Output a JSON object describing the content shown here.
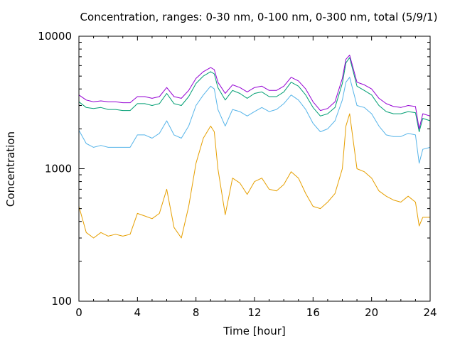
{
  "chart_data": {
    "type": "line",
    "title": "Concentration, ranges: 0-30 nm, 0-100 nm, 0-300 nm, total (5/9/1)",
    "xlabel": "Time [hour]",
    "ylabel": "Concentration",
    "xlim": [
      0,
      24
    ],
    "ylim": [
      100,
      10000
    ],
    "yscale": "log",
    "grid": false,
    "legend": "none",
    "x_ticks": [
      0,
      4,
      8,
      12,
      16,
      20,
      24
    ],
    "x_tick_labels": [
      "0",
      "4",
      "8",
      "12",
      "16",
      "20",
      "24"
    ],
    "y_ticks": [
      100,
      1000,
      10000
    ],
    "y_tick_labels": [
      "100",
      "1000",
      "10000"
    ],
    "x": [
      0,
      0.5,
      1,
      1.5,
      2,
      2.5,
      3,
      3.5,
      4,
      4.5,
      5,
      5.5,
      6,
      6.5,
      7,
      7.5,
      8,
      8.5,
      9,
      9.25,
      9.5,
      10,
      10.5,
      11,
      11.5,
      12,
      12.5,
      13,
      13.5,
      14,
      14.5,
      15,
      15.5,
      16,
      16.5,
      17,
      17.5,
      18,
      18.25,
      18.5,
      19,
      19.5,
      20,
      20.5,
      21,
      21.5,
      22,
      22.5,
      23,
      23.25,
      23.5,
      24
    ],
    "series": [
      {
        "color": "#e69f00",
        "values": [
          520,
          330,
          300,
          330,
          310,
          320,
          310,
          320,
          460,
          440,
          420,
          460,
          700,
          360,
          300,
          520,
          1100,
          1700,
          2100,
          1900,
          1000,
          450,
          850,
          780,
          640,
          800,
          850,
          700,
          680,
          760,
          950,
          850,
          650,
          520,
          500,
          560,
          650,
          1000,
          2100,
          2600,
          1000,
          950,
          850,
          680,
          620,
          580,
          560,
          620,
          560,
          370,
          430,
          430
        ]
      },
      {
        "color": "#56b4e9",
        "values": [
          1950,
          1550,
          1450,
          1500,
          1450,
          1450,
          1450,
          1450,
          1800,
          1800,
          1700,
          1850,
          2300,
          1800,
          1700,
          2100,
          3000,
          3600,
          4200,
          4000,
          2800,
          2100,
          2800,
          2700,
          2500,
          2700,
          2900,
          2700,
          2800,
          3100,
          3600,
          3300,
          2800,
          2200,
          1900,
          2000,
          2300,
          3300,
          4500,
          4900,
          3000,
          2900,
          2600,
          2100,
          1800,
          1750,
          1750,
          1850,
          1800,
          1100,
          1400,
          1450
        ]
      },
      {
        "color": "#009e73",
        "values": [
          3200,
          2900,
          2850,
          2900,
          2800,
          2800,
          2750,
          2750,
          3100,
          3100,
          3000,
          3100,
          3700,
          3100,
          3000,
          3500,
          4400,
          5000,
          5400,
          5200,
          4100,
          3300,
          3900,
          3700,
          3400,
          3700,
          3800,
          3500,
          3500,
          3800,
          4500,
          4200,
          3600,
          2900,
          2500,
          2600,
          2900,
          4400,
          6300,
          6900,
          4200,
          3900,
          3600,
          3000,
          2700,
          2600,
          2600,
          2700,
          2650,
          1900,
          2400,
          2300
        ]
      },
      {
        "color": "#9400d3",
        "values": [
          3600,
          3300,
          3200,
          3250,
          3200,
          3200,
          3150,
          3150,
          3500,
          3500,
          3400,
          3500,
          4100,
          3500,
          3400,
          3900,
          4800,
          5400,
          5800,
          5600,
          4500,
          3700,
          4300,
          4100,
          3800,
          4100,
          4200,
          3900,
          3900,
          4200,
          4900,
          4600,
          4000,
          3200,
          2750,
          2850,
          3200,
          4800,
          6700,
          7200,
          4500,
          4300,
          4000,
          3400,
          3100,
          2950,
          2900,
          3000,
          2950,
          2000,
          2600,
          2500
        ]
      }
    ]
  }
}
